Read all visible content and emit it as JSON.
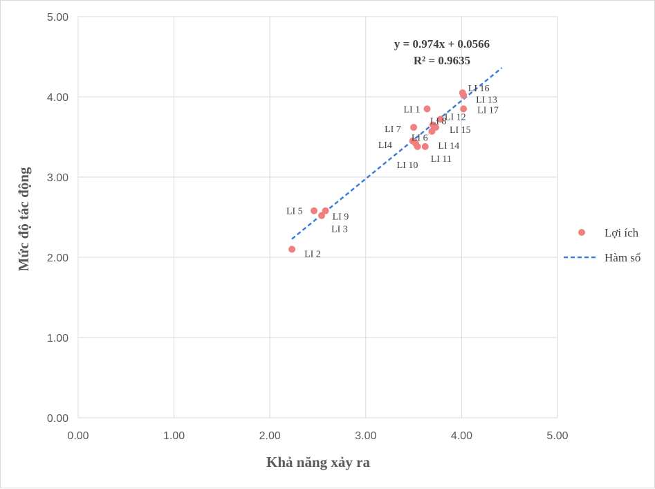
{
  "chart_data": {
    "type": "scatter",
    "xlabel": "Khả năng xảy ra",
    "ylabel": "Mức độ tác động",
    "xlim": [
      0,
      5
    ],
    "ylim": [
      0,
      5
    ],
    "x_ticks": [
      "0.00",
      "1.00",
      "2.00",
      "3.00",
      "4.00",
      "5.00"
    ],
    "y_ticks": [
      "0.00",
      "1.00",
      "2.00",
      "3.00",
      "4.00",
      "5.00"
    ],
    "grid": true,
    "legend_position": "right",
    "series": [
      {
        "name": "Lợi ích",
        "color": "#f08080",
        "points": [
          {
            "label": "LI 1",
            "x": 3.64,
            "y": 3.85
          },
          {
            "label": "LI 2",
            "x": 2.23,
            "y": 2.1
          },
          {
            "label": "LI 3",
            "x": 2.54,
            "y": 2.52
          },
          {
            "label": "LI4",
            "x": 3.49,
            "y": 3.45
          },
          {
            "label": "LI 5",
            "x": 2.46,
            "y": 2.58
          },
          {
            "label": "LI 6",
            "x": 3.52,
            "y": 3.42
          },
          {
            "label": "LI 7",
            "x": 3.5,
            "y": 3.62
          },
          {
            "label": "LI 8",
            "x": 3.7,
            "y": 3.65
          },
          {
            "label": "LI 9",
            "x": 2.58,
            "y": 2.58
          },
          {
            "label": "LI 10",
            "x": 3.54,
            "y": 3.38
          },
          {
            "label": "LI 11",
            "x": 3.62,
            "y": 3.38
          },
          {
            "label": "LI 12",
            "x": 3.78,
            "y": 3.72
          },
          {
            "label": "LI 13",
            "x": 4.02,
            "y": 4.02
          },
          {
            "label": "LI 14",
            "x": 3.69,
            "y": 3.57
          },
          {
            "label": "LI 15",
            "x": 3.73,
            "y": 3.62
          },
          {
            "label": "LI 16",
            "x": 4.01,
            "y": 4.05
          },
          {
            "label": "LI 17",
            "x": 4.02,
            "y": 3.85
          }
        ]
      },
      {
        "name": "Hàm số",
        "type": "trendline",
        "color": "#3c7dd9",
        "slope": 0.974,
        "intercept": 0.0566,
        "x_range": [
          2.23,
          4.42
        ]
      }
    ],
    "annotations": {
      "equation": "y = 0.974x + 0.0566",
      "r_squared": "R² = 0.9635"
    }
  }
}
